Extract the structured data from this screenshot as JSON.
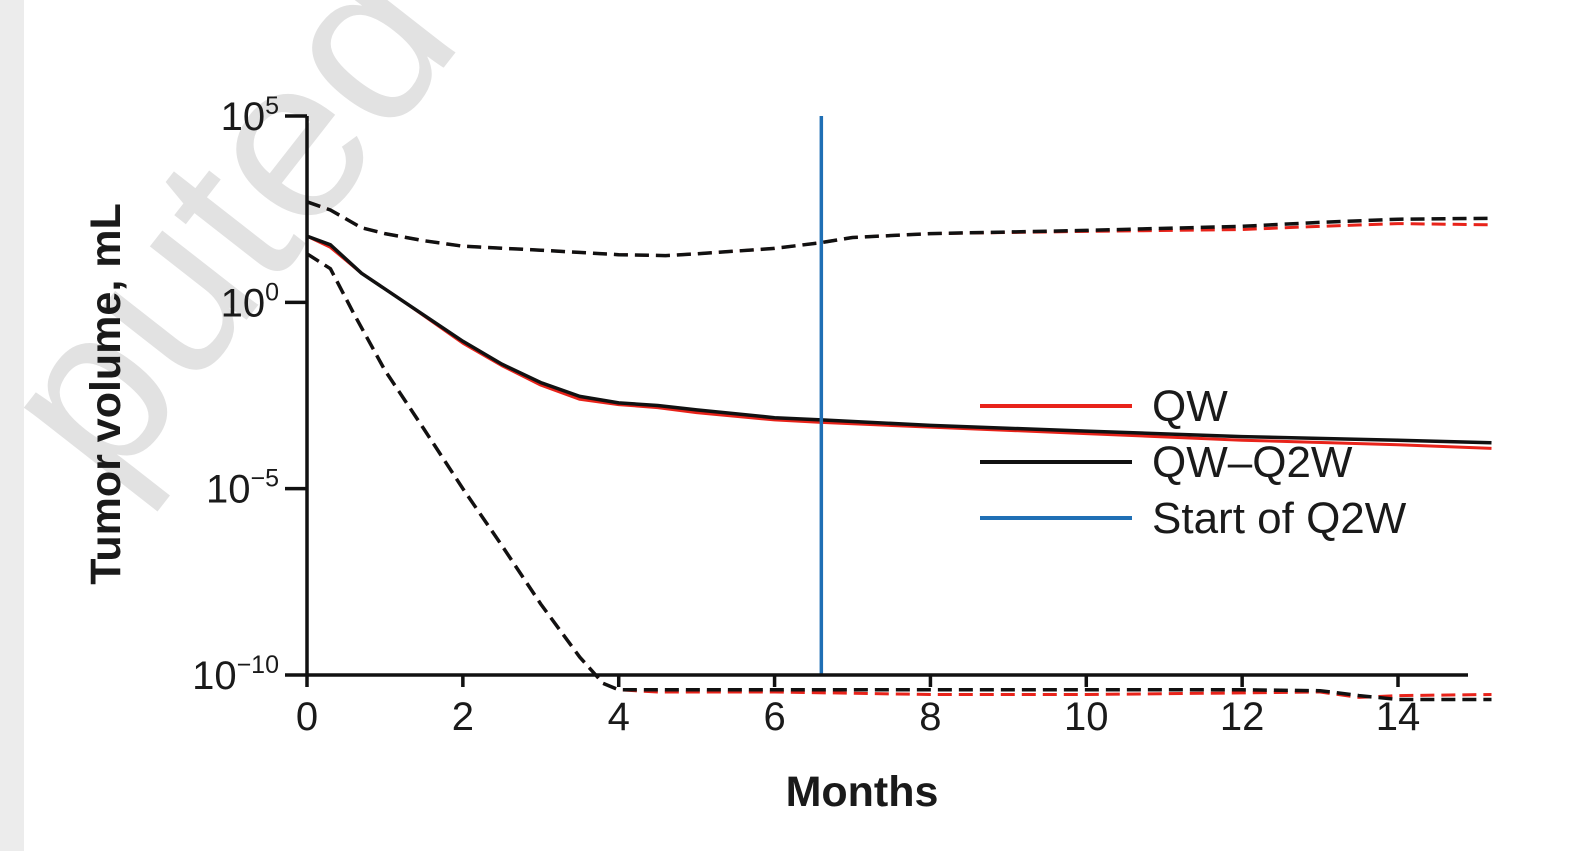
{
  "watermark": {
    "text": "puted"
  },
  "chart_data": {
    "type": "line",
    "xlabel": "Months",
    "ylabel": "Tumor volume, mL",
    "xlim": [
      0,
      15.2
    ],
    "ylim": [
      1e-10,
      100000.0
    ],
    "yscale": "log",
    "xticks": [
      0,
      2,
      4,
      6,
      8,
      10,
      12,
      14
    ],
    "yticks": [
      {
        "value": 1e-10,
        "label_base": "10",
        "label_exp": "−10"
      },
      {
        "value": 1e-05,
        "label_base": "10",
        "label_exp": "−5"
      },
      {
        "value": 1,
        "label_base": "10",
        "label_exp": "0"
      },
      {
        "value": 100000.0,
        "label_base": "10",
        "label_exp": "5"
      }
    ],
    "vline": {
      "x": 6.6,
      "color": "#1f6fb5",
      "name": "Start of Q2W"
    },
    "legend": [
      {
        "label": "QW",
        "color": "#e8231a"
      },
      {
        "label": "QW–Q2W",
        "color": "#111111"
      },
      {
        "label": "Start of Q2W",
        "color": "#1f6fb5"
      }
    ],
    "legend_position": "right",
    "grid": false,
    "series": [
      {
        "name": "QW",
        "style": "solid",
        "color": "#e8231a",
        "width": 3,
        "x": [
          0,
          0.3,
          0.7,
          1.2,
          2,
          2.5,
          3,
          3.5,
          4,
          4.5,
          5,
          6,
          6.6,
          8,
          10,
          12,
          14,
          15.2
        ],
        "y": [
          60,
          30,
          6,
          1.2,
          0.08,
          0.02,
          0.006,
          0.0025,
          0.0018,
          0.0015,
          0.0011,
          0.0007,
          0.0006,
          0.00045,
          0.0003,
          0.0002,
          0.00015,
          0.00012
        ]
      },
      {
        "name": "QW–Q2W",
        "style": "solid",
        "color": "#111111",
        "width": 3.5,
        "x": [
          0,
          0.3,
          0.7,
          1.2,
          2,
          2.5,
          3,
          3.5,
          4,
          4.5,
          5,
          6,
          6.6,
          8,
          10,
          12,
          14,
          15.2
        ],
        "y": [
          60,
          35,
          6,
          1.2,
          0.09,
          0.022,
          0.007,
          0.003,
          0.002,
          0.0017,
          0.0013,
          0.0008,
          0.0007,
          0.0005,
          0.00035,
          0.00025,
          0.0002,
          0.00017
        ]
      },
      {
        "name": "QW upper",
        "style": "dashed",
        "color": "#e8231a",
        "width": 3,
        "x": [
          0,
          0.3,
          0.7,
          1,
          1.5,
          2,
          3,
          4,
          4.6,
          5,
          6,
          6.6,
          7,
          8,
          10,
          12,
          13,
          14,
          15.2
        ],
        "y": [
          500,
          300,
          100,
          70,
          45,
          32,
          25,
          19,
          18,
          20,
          28,
          40,
          55,
          70,
          80,
          90,
          110,
          130,
          120
        ]
      },
      {
        "name": "QW–Q2W upper",
        "style": "dashed",
        "color": "#111111",
        "width": 3.5,
        "x": [
          0,
          0.3,
          0.7,
          1,
          1.5,
          2,
          3,
          4,
          4.6,
          5,
          6,
          6.6,
          7,
          8,
          10,
          12,
          13,
          14,
          15.2
        ],
        "y": [
          500,
          300,
          100,
          70,
          45,
          32,
          25,
          19,
          18,
          20,
          28,
          40,
          55,
          70,
          85,
          110,
          140,
          170,
          180
        ]
      },
      {
        "name": "QW lower",
        "style": "dashed",
        "color": "#e8231a",
        "width": 3,
        "x": [
          0,
          0.3,
          0.6,
          1,
          1.5,
          2,
          2.5,
          3,
          3.5,
          3.8,
          4,
          4.5,
          6,
          8,
          10,
          12,
          13,
          13.5,
          14,
          15.2
        ],
        "y": [
          20,
          8,
          0.5,
          0.015,
          0.0004,
          1e-05,
          3e-07,
          8e-09,
          3e-10,
          6e-11,
          4e-11,
          3.5e-11,
          3.5e-11,
          3e-11,
          3e-11,
          3.3e-11,
          3.5e-11,
          2.5e-11,
          2.8e-11,
          3e-11
        ]
      },
      {
        "name": "QW–Q2W lower",
        "style": "dashed",
        "color": "#111111",
        "width": 3.5,
        "x": [
          0,
          0.3,
          0.6,
          1,
          1.5,
          2,
          2.5,
          3,
          3.5,
          3.8,
          4,
          4.5,
          6,
          8,
          10,
          12,
          13,
          13.5,
          14,
          15.2
        ],
        "y": [
          20,
          8,
          0.5,
          0.015,
          0.0004,
          1e-05,
          3e-07,
          8e-09,
          3e-10,
          6e-11,
          4e-11,
          4e-11,
          4e-11,
          4e-11,
          4e-11,
          4e-11,
          3.8e-11,
          2.8e-11,
          2.2e-11,
          2.2e-11
        ]
      }
    ]
  }
}
